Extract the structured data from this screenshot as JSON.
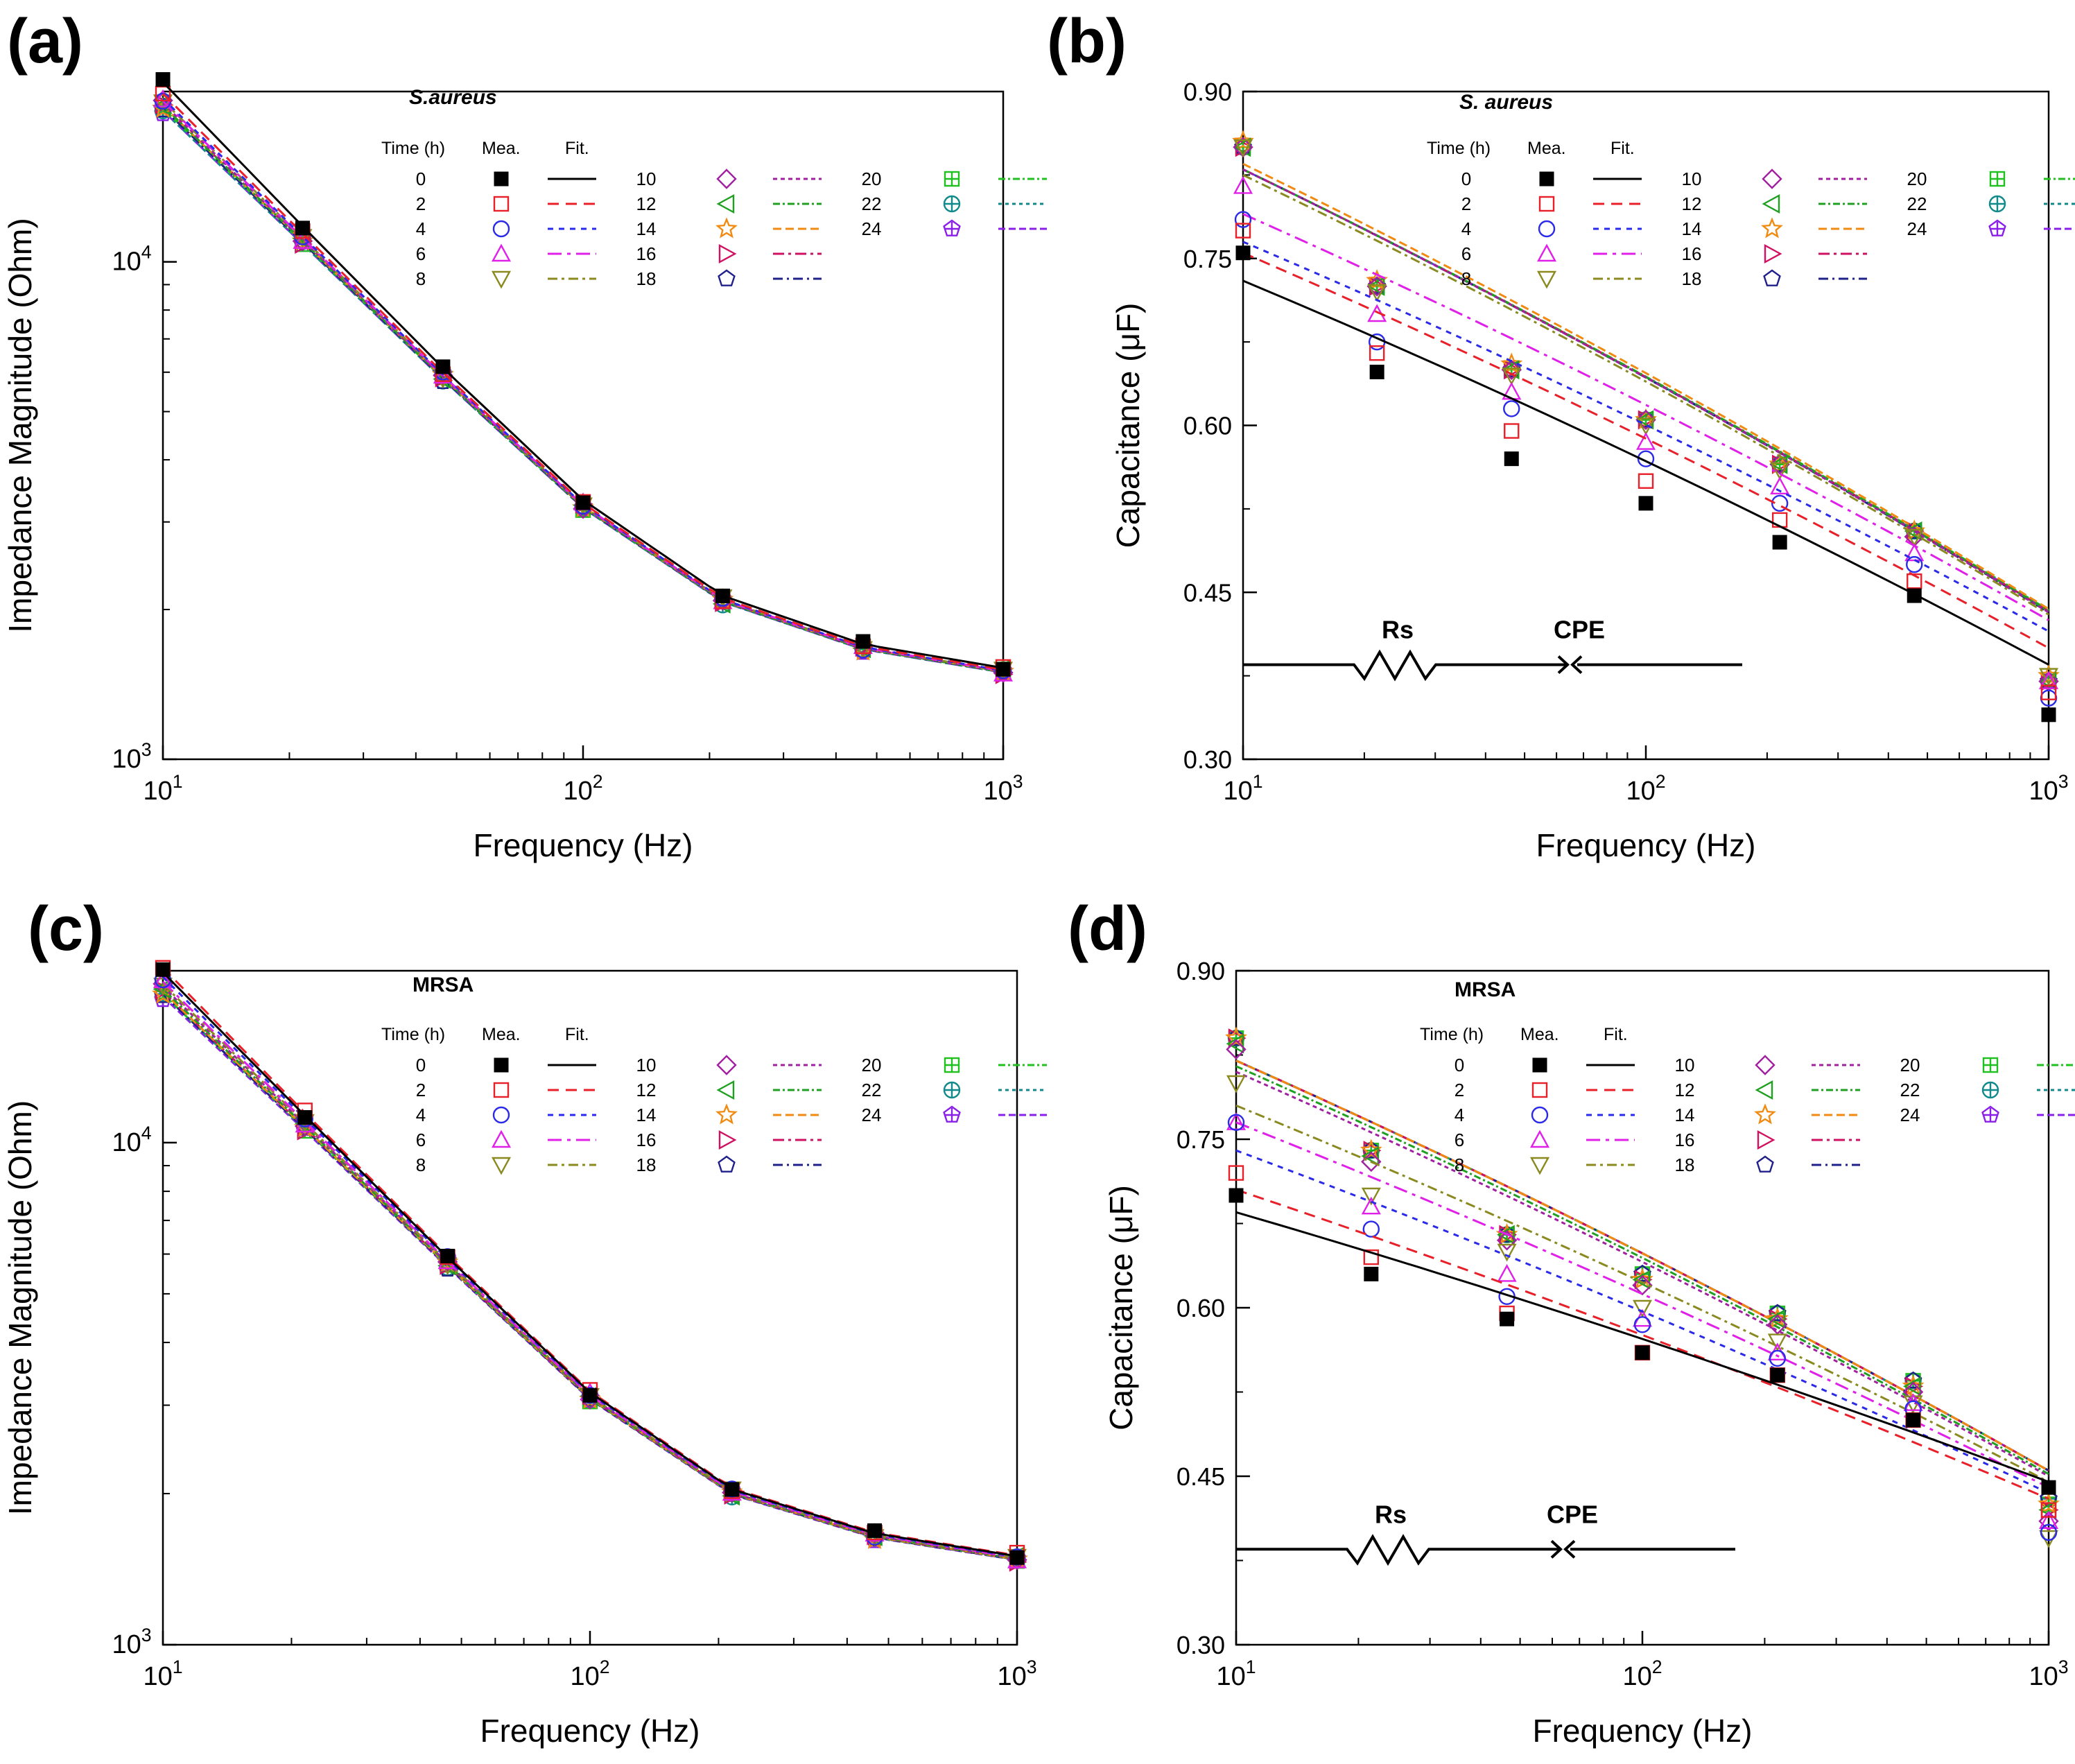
{
  "figure": {
    "panel_labels": [
      "(a)",
      "(b)",
      "(c)",
      "(d)"
    ],
    "legend_headers": {
      "time": "Time (h)",
      "measured": "Mea.",
      "fit": "Fit."
    },
    "series_times": [
      "0",
      "2",
      "4",
      "6",
      "8",
      "10",
      "12",
      "14",
      "16",
      "18",
      "20",
      "22",
      "24"
    ],
    "series_colors": [
      "#000000",
      "#e8202a",
      "#2a2ae8",
      "#e020e8",
      "#8a8a20",
      "#a020a0",
      "#20a020",
      "#f08a10",
      "#d01060",
      "#20208a",
      "#20c020",
      "#108a8a",
      "#8a20e8"
    ],
    "series_markers": [
      "square-filled-icon",
      "square-icon",
      "circle-icon",
      "triangle-up-icon",
      "triangle-down-icon",
      "diamond-icon",
      "triangle-left-icon",
      "star-icon",
      "triangle-right-icon",
      "pentagon-icon",
      "square-plus-icon",
      "circle-plus-icon",
      "pentagon-plus-icon"
    ],
    "circuit": {
      "resistor_label": "Rs",
      "cpe_label": "CPE"
    }
  },
  "chart_data": [
    {
      "panel": "(a)",
      "type": "line",
      "title": "S.aureus",
      "xlabel": "Frequency (Hz)",
      "ylabel": "Impedance Magnitude (Ohm)",
      "x_scale": "log",
      "y_scale": "log",
      "xlim": [
        10,
        1000
      ],
      "ylim": [
        1000,
        22000
      ],
      "x_ticks": [
        "10^1",
        "10^2",
        "10^3"
      ],
      "y_ticks": [
        "10^3",
        "10^4"
      ],
      "x": [
        10,
        21.5,
        46.4,
        100,
        215,
        464,
        1000
      ],
      "base": [
        20600,
        11000,
        5850,
        3220,
        2080,
        1670,
        1500
      ],
      "factors": [
        1.1,
        1.05,
        1.03,
        1.02,
        1.02,
        1.01,
        1.0,
        1.0,
        1.0,
        0.99,
        0.99,
        0.98,
        0.98
      ]
    },
    {
      "panel": "(b)",
      "type": "line",
      "title": "S. aureus",
      "xlabel": "Frequency (Hz)",
      "ylabel": "Capacitance (μF)",
      "x_scale": "log",
      "y_scale": "linear",
      "xlim": [
        10,
        1000
      ],
      "ylim": [
        0.3,
        0.9
      ],
      "x_ticks": [
        "10^1",
        "10^2",
        "10^3"
      ],
      "y_ticks": [
        "0.30",
        "0.45",
        "0.60",
        "0.75",
        "0.90"
      ],
      "x": [
        10,
        21.5,
        46.4,
        100,
        215,
        464,
        1000
      ],
      "fit_endpoints": [
        [
          0.73,
          0.385
        ],
        [
          0.755,
          0.4
        ],
        [
          0.765,
          0.415
        ],
        [
          0.79,
          0.425
        ],
        [
          0.825,
          0.43
        ],
        [
          0.83,
          0.432
        ],
        [
          0.83,
          0.433
        ],
        [
          0.835,
          0.435
        ],
        [
          0.83,
          0.433
        ],
        [
          0.83,
          0.432
        ],
        [
          0.83,
          0.434
        ],
        [
          0.83,
          0.433
        ],
        [
          0.83,
          0.433
        ]
      ],
      "measured": [
        [
          0.755,
          0.648,
          0.57,
          0.53,
          0.495,
          0.447,
          0.34
        ],
        [
          0.775,
          0.665,
          0.595,
          0.55,
          0.515,
          0.46,
          0.36
        ],
        [
          0.785,
          0.675,
          0.615,
          0.57,
          0.53,
          0.475,
          0.355
        ],
        [
          0.815,
          0.7,
          0.63,
          0.585,
          0.545,
          0.485,
          0.37
        ],
        [
          0.85,
          0.72,
          0.645,
          0.6,
          0.56,
          0.5,
          0.375
        ],
        [
          0.85,
          0.725,
          0.65,
          0.605,
          0.565,
          0.5,
          0.37
        ],
        [
          0.85,
          0.725,
          0.65,
          0.605,
          0.565,
          0.505,
          0.37
        ],
        [
          0.855,
          0.73,
          0.655,
          0.605,
          0.565,
          0.505,
          0.375
        ],
        [
          0.85,
          0.725,
          0.65,
          0.605,
          0.565,
          0.505,
          0.37
        ],
        [
          0.85,
          0.725,
          0.65,
          0.605,
          0.565,
          0.505,
          0.37
        ],
        [
          0.85,
          0.725,
          0.65,
          0.605,
          0.565,
          0.505,
          0.37
        ],
        [
          0.85,
          0.725,
          0.65,
          0.605,
          0.565,
          0.505,
          0.37
        ],
        [
          0.85,
          0.725,
          0.65,
          0.605,
          0.565,
          0.505,
          0.37
        ]
      ]
    },
    {
      "panel": "(c)",
      "type": "line",
      "title": "MRSA",
      "xlabel": "Frequency (Hz)",
      "ylabel": "Impedance Magnitude (Ohm)",
      "x_scale": "log",
      "y_scale": "log",
      "xlim": [
        10,
        1000
      ],
      "ylim": [
        1000,
        22000
      ],
      "x_ticks": [
        "10^1",
        "10^2",
        "10^3"
      ],
      "y_ticks": [
        "10^3",
        "10^4"
      ],
      "x": [
        10,
        21.5,
        46.4,
        100,
        215,
        464,
        1000
      ],
      "base": [
        20000,
        10700,
        5700,
        3100,
        2000,
        1640,
        1480
      ],
      "factors": [
        1.08,
        1.1,
        1.06,
        1.04,
        1.03,
        1.02,
        1.01,
        1.0,
        1.0,
        0.99,
        0.99,
        0.99,
        0.98
      ]
    },
    {
      "panel": "(d)",
      "type": "line",
      "title": "MRSA",
      "xlabel": "Frequency (Hz)",
      "ylabel": "Capacitance (μF)",
      "x_scale": "log",
      "y_scale": "linear",
      "xlim": [
        10,
        1000
      ],
      "ylim": [
        0.3,
        0.9
      ],
      "x_ticks": [
        "10^1",
        "10^2",
        "10^3"
      ],
      "y_ticks": [
        "0.30",
        "0.45",
        "0.60",
        "0.75",
        "0.90"
      ],
      "x": [
        10,
        21.5,
        46.4,
        100,
        215,
        464,
        1000
      ],
      "fit_endpoints": [
        [
          0.685,
          0.445
        ],
        [
          0.705,
          0.43
        ],
        [
          0.74,
          0.435
        ],
        [
          0.765,
          0.44
        ],
        [
          0.78,
          0.445
        ],
        [
          0.81,
          0.45
        ],
        [
          0.815,
          0.452
        ],
        [
          0.82,
          0.455
        ],
        [
          0.82,
          0.455
        ],
        [
          0.82,
          0.455
        ],
        [
          0.82,
          0.455
        ],
        [
          0.82,
          0.455
        ],
        [
          0.82,
          0.455
        ]
      ],
      "measured": [
        [
          0.7,
          0.63,
          0.59,
          0.56,
          0.54,
          0.5,
          0.44
        ],
        [
          0.72,
          0.645,
          0.595,
          0.56,
          0.54,
          0.5,
          0.42
        ],
        [
          0.765,
          0.67,
          0.61,
          0.585,
          0.555,
          0.51,
          0.4
        ],
        [
          0.765,
          0.69,
          0.63,
          0.59,
          0.56,
          0.515,
          0.41
        ],
        [
          0.8,
          0.7,
          0.65,
          0.6,
          0.57,
          0.515,
          0.395
        ],
        [
          0.83,
          0.73,
          0.66,
          0.62,
          0.585,
          0.525,
          0.41
        ],
        [
          0.835,
          0.735,
          0.665,
          0.625,
          0.59,
          0.53,
          0.42
        ],
        [
          0.84,
          0.74,
          0.665,
          0.625,
          0.59,
          0.53,
          0.425
        ],
        [
          0.84,
          0.74,
          0.665,
          0.625,
          0.59,
          0.53,
          0.42
        ],
        [
          0.84,
          0.74,
          0.665,
          0.63,
          0.595,
          0.535,
          0.43
        ],
        [
          0.84,
          0.74,
          0.665,
          0.63,
          0.595,
          0.535,
          0.425
        ],
        [
          0.84,
          0.74,
          0.665,
          0.63,
          0.595,
          0.535,
          0.43
        ],
        [
          0.84,
          0.74,
          0.665,
          0.63,
          0.595,
          0.535,
          0.43
        ]
      ]
    }
  ]
}
